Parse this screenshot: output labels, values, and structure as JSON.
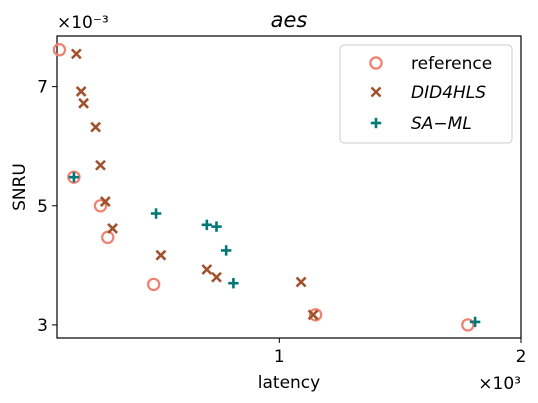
{
  "chart_data": {
    "type": "scatter",
    "title": "aes",
    "xlabel": "latency",
    "ylabel": "SNRU",
    "x_multiplier": "×10³",
    "y_multiplier": "×10⁻³",
    "xlim": [
      0.08,
      2.0
    ],
    "ylim": [
      2.78,
      7.85
    ],
    "x_ticks": [
      {
        "value": 1,
        "label": "1"
      },
      {
        "value": 2,
        "label": "2"
      }
    ],
    "y_ticks": [
      {
        "value": 3,
        "label": "3"
      },
      {
        "value": 5,
        "label": "5"
      },
      {
        "value": 7,
        "label": "7"
      }
    ],
    "grid": false,
    "legend_position": "top-right",
    "series": [
      {
        "name": "reference",
        "marker": "open-circle",
        "color": "#f08070",
        "points": [
          [
            0.09,
            7.62
          ],
          [
            0.15,
            5.48
          ],
          [
            0.26,
            5.0
          ],
          [
            0.29,
            4.47
          ],
          [
            0.48,
            3.68
          ],
          [
            1.15,
            3.17
          ],
          [
            1.78,
            3.0
          ]
        ]
      },
      {
        "name": "DID4HLS",
        "marker": "x",
        "color": "#a0522d",
        "points": [
          [
            0.16,
            7.55
          ],
          [
            0.18,
            6.92
          ],
          [
            0.19,
            6.72
          ],
          [
            0.24,
            6.32
          ],
          [
            0.26,
            5.68
          ],
          [
            0.28,
            5.07
          ],
          [
            0.31,
            4.62
          ],
          [
            0.51,
            4.17
          ],
          [
            0.7,
            3.93
          ],
          [
            0.74,
            3.8
          ],
          [
            1.09,
            3.72
          ],
          [
            1.14,
            3.17
          ]
        ]
      },
      {
        "name": "SA−ML",
        "marker": "plus",
        "color": "#007878",
        "points": [
          [
            0.15,
            5.48
          ],
          [
            0.49,
            4.87
          ],
          [
            0.7,
            4.68
          ],
          [
            0.74,
            4.65
          ],
          [
            0.78,
            4.25
          ],
          [
            0.81,
            3.7
          ],
          [
            1.81,
            3.05
          ]
        ]
      }
    ]
  },
  "legend": {
    "items": [
      {
        "label": "reference"
      },
      {
        "label": "DID4HLS"
      },
      {
        "label": "SA−ML"
      }
    ]
  }
}
